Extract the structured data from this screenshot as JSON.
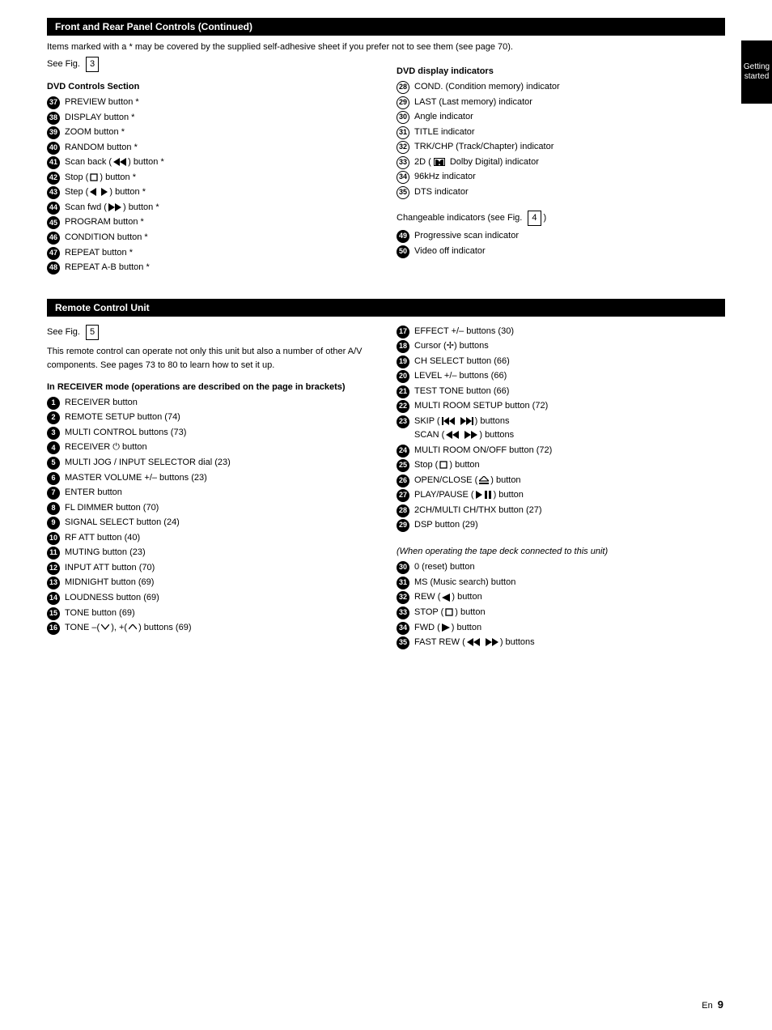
{
  "side_tab": {
    "line1": "Getting",
    "line2": "started"
  },
  "top_bar": {
    "left": "Front and Rear Panel Controls (Continued)",
    "right": ""
  },
  "after_top_bar": "Items marked with a * may be covered by the supplied self-adhesive sheet if you prefer not to see them (see page 70).",
  "section1": {
    "see_fig_label": "See Fig.",
    "see_fig_num": "3",
    "left_items": {
      "header": "DVD Controls Section",
      "rows": [
        {
          "n": 37,
          "style": "filled",
          "text": "PREVIEW button *"
        },
        {
          "n": 38,
          "style": "filled",
          "text": "DISPLAY button *"
        },
        {
          "n": 39,
          "style": "filled",
          "text": "ZOOM button *"
        },
        {
          "n": 40,
          "style": "filled",
          "text": "RANDOM button *"
        },
        {
          "n": 41,
          "style": "filled",
          "text": "Scan back (|SCAN_BACK|) button *"
        },
        {
          "n": 42,
          "style": "filled",
          "text": "Stop (|STOP_SQ|) button *"
        },
        {
          "n": 43,
          "style": "filled",
          "text": "Step (|STEP|) button *"
        },
        {
          "n": 44,
          "style": "filled",
          "text": "Scan fwd (|SCAN_FWD|) button *"
        },
        {
          "n": 45,
          "style": "filled",
          "text": "PROGRAM button *"
        },
        {
          "n": 46,
          "style": "filled",
          "text": "CONDITION button *"
        },
        {
          "n": 47,
          "style": "filled",
          "text": "REPEAT button *"
        },
        {
          "n": 48,
          "style": "filled",
          "text": "REPEAT A-B button *"
        }
      ]
    },
    "right_items": {
      "header": "DVD display indicators",
      "rows": [
        {
          "n": 28,
          "style": "outline",
          "text": "COND. (Condition memory) indicator"
        },
        {
          "n": 29,
          "style": "outline",
          "text": "LAST (Last memory) indicator"
        },
        {
          "n": 30,
          "style": "outline",
          "text": "Angle indicator"
        },
        {
          "n": 31,
          "style": "outline",
          "text": "TITLE indicator"
        },
        {
          "n": 32,
          "style": "outline",
          "text": "TRK/CHP (Track/Chapter) indicator"
        },
        {
          "n": 33,
          "style": "outline",
          "text": "2D (|DOLBY| Dolby Digital) indicator"
        },
        {
          "n": 34,
          "style": "outline",
          "text": "96kHz indicator"
        },
        {
          "n": 35,
          "style": "outline",
          "text": "DTS indicator"
        }
      ],
      "trailer_fig_label": "Changeable indicators (see Fig.",
      "trailer_fig_num": "4",
      "trailer_rows": [
        {
          "n": 49,
          "style": "filled",
          "text": "Progressive scan indicator"
        },
        {
          "n": 50,
          "style": "filled",
          "text": "Video off indicator"
        }
      ]
    }
  },
  "mid_bar": {
    "left": "Remote Control Unit"
  },
  "section2": {
    "see_fig_label": "See Fig.",
    "see_fig_num": "5",
    "lead": "This remote control can operate not only this unit but also a number of other A/V components. See pages 73 to 80 to learn how to set it up.",
    "header": "In RECEIVER mode (operations are described on the page in brackets)",
    "left_rows": [
      {
        "n": 1,
        "style": "filled",
        "text": "RECEIVER button"
      },
      {
        "n": 2,
        "style": "filled",
        "text": "REMOTE SETUP button (74)"
      },
      {
        "n": 3,
        "style": "filled",
        "text": "MULTI CONTROL buttons (73)"
      },
      {
        "n": 4,
        "style": "filled",
        "text": "RECEIVER |POWER| button"
      },
      {
        "n": 5,
        "style": "filled",
        "text": "MULTI JOG / INPUT SELECTOR dial (23)"
      },
      {
        "n": 6,
        "style": "filled",
        "text": "MASTER VOLUME +/– buttons (23)"
      },
      {
        "n": 7,
        "style": "filled",
        "text": "ENTER button"
      },
      {
        "n": 8,
        "style": "filled",
        "text": "FL DIMMER button (70)"
      },
      {
        "n": 9,
        "style": "filled",
        "text": "SIGNAL SELECT button (24)"
      },
      {
        "n": 10,
        "style": "filled",
        "text": "RF ATT button (40)"
      },
      {
        "n": 11,
        "style": "filled",
        "text": "MUTING button (23)"
      },
      {
        "n": 12,
        "style": "filled",
        "text": "INPUT ATT button (70)"
      },
      {
        "n": 13,
        "style": "filled",
        "text": "MIDNIGHT button (69)"
      },
      {
        "n": 14,
        "style": "filled",
        "text": "LOUDNESS button (69)"
      },
      {
        "n": 15,
        "style": "filled",
        "text": "TONE button (69)"
      },
      {
        "n": 16,
        "style": "filled",
        "text": "TONE –(|DOWN|), +(|UP|) buttons (69)"
      }
    ],
    "right_rows": [
      {
        "n": 17,
        "style": "filled",
        "text": "EFFECT +/– buttons (30)"
      },
      {
        "n": 18,
        "style": "filled",
        "text": "Cursor (|CURSOR|) buttons"
      },
      {
        "n": 19,
        "style": "filled",
        "text": "CH SELECT button (66)"
      },
      {
        "n": 20,
        "style": "filled",
        "text": "LEVEL +/– buttons (66)"
      },
      {
        "n": 21,
        "style": "filled",
        "text": "TEST TONE button (66)"
      },
      {
        "n": 22,
        "style": "filled",
        "text": "MULTI ROOM SETUP button (72)"
      },
      {
        "n": 23,
        "style": "filled",
        "text": "SKIP (|SKIP_BACK| |SKIP_FWD|) buttons\nSCAN (|SCAN_BACK2| |SCAN_FWD2|) buttons"
      },
      {
        "n": 24,
        "style": "filled",
        "text": "MULTI ROOM ON/OFF button (72)"
      },
      {
        "n": 25,
        "style": "filled",
        "text": "Stop (|STOP_SQ|) button"
      },
      {
        "n": 26,
        "style": "filled",
        "text": "OPEN/CLOSE (|EJECT|) button"
      },
      {
        "n": 27,
        "style": "filled",
        "text": "PLAY/PAUSE (|PLAYPAUSE|) button"
      },
      {
        "n": 28,
        "style": "filled",
        "text": "2CH/MULTI CH/THX button (27)"
      },
      {
        "n": 29,
        "style": "filled",
        "text": "DSP button (29)"
      }
    ],
    "sub_header": "(When operating the tape deck connected to this unit)",
    "sub_rows": [
      {
        "n": 30,
        "style": "filled",
        "text": "0 (reset) button"
      },
      {
        "n": 31,
        "style": "filled",
        "text": "MS (Music search) button"
      },
      {
        "n": 32,
        "style": "filled",
        "text": "REW (|REW|) button"
      },
      {
        "n": 33,
        "style": "filled",
        "text": "STOP (|STOP_SQ|) button"
      },
      {
        "n": 34,
        "style": "filled",
        "text": "FWD (|FWD|) button"
      },
      {
        "n": 35,
        "style": "filled",
        "text": "FAST REW (|FREW| |FFWD|) buttons"
      }
    ]
  },
  "page_number": {
    "label": "En",
    "num": "9"
  },
  "icons": {
    "SCAN_BACK": "scan-back",
    "SCAN_FWD": "scan-fwd",
    "SCAN_BACK2": "scan-back2",
    "SCAN_FWD2": "scan-fwd2",
    "STOP_SQ": "stop-square",
    "STEP": "step",
    "DOLBY": "dolby",
    "POWER": "power",
    "DOWN": "down",
    "UP": "up",
    "CURSOR": "cursor",
    "SKIP_BACK": "skip-back",
    "SKIP_FWD": "skip-fwd",
    "EJECT": "eject",
    "PLAYPAUSE": "play-pause",
    "REW": "rew",
    "FWD": "fwd",
    "FREW": "frew",
    "FFWD": "ffwd"
  }
}
